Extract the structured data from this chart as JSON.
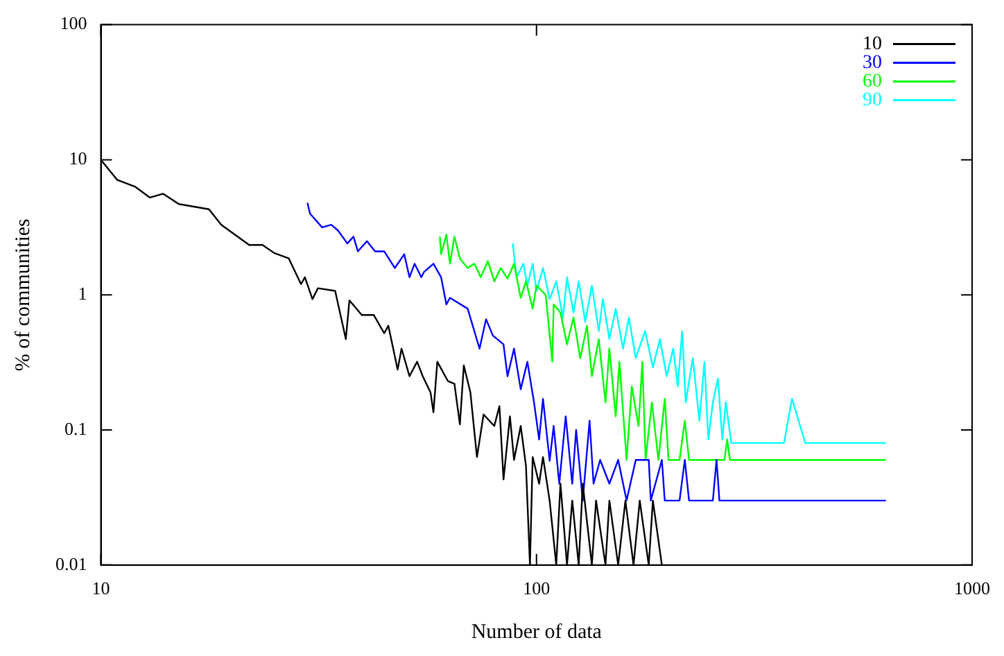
{
  "chart_data": {
    "type": "line",
    "xlabel": "Number of data",
    "ylabel": "% of communities",
    "log": "xy",
    "grid": false,
    "legend": "top right",
    "marker": "none",
    "line_style": "solid",
    "xlim": [
      10,
      1000
    ],
    "xticks": [
      10,
      100,
      1000
    ],
    "ylim": [
      0.01,
      100
    ],
    "yticks": [
      0.01,
      0.1,
      1,
      10,
      100
    ],
    "series": [
      {
        "name": "10",
        "color": "#000000",
        "x": [
          10,
          10.9,
          12.0,
          12.96,
          13.9,
          15.1,
          17.7,
          18.9,
          21.9,
          23.5,
          25.0,
          27.0,
          28.8,
          29.4,
          30.6,
          31.5,
          34.5,
          36.5,
          37.2,
          39.7,
          42.3,
          44.7,
          45.7,
          48.0,
          49.0,
          51.1,
          53.2,
          54.8,
          57.1,
          58.0,
          59.2,
          62.6,
          64.8,
          66.7,
          68.1,
          70.5,
          73.0,
          75.6,
          80.0,
          82.2,
          84.0,
          86.9,
          88.8,
          92.0,
          94.6,
          96.6,
          98.0,
          101.4,
          103.5,
          107.2,
          111,
          113.5,
          117.5,
          120.8,
          125,
          127.7,
          134,
          137,
          144,
          147,
          154,
          160,
          167,
          172.6,
          181,
          185,
          194
        ],
        "values": [
          10,
          7.1,
          6.3,
          5.25,
          5.6,
          4.7,
          4.3,
          3.3,
          2.34,
          2.34,
          2.04,
          1.86,
          1.2,
          1.35,
          0.93,
          1.12,
          1.07,
          0.47,
          0.91,
          0.71,
          0.71,
          0.52,
          0.59,
          0.28,
          0.4,
          0.25,
          0.32,
          0.25,
          0.19,
          0.135,
          0.32,
          0.23,
          0.22,
          0.11,
          0.3,
          0.19,
          0.063,
          0.13,
          0.107,
          0.15,
          0.043,
          0.126,
          0.06,
          0.107,
          0.054,
          0.01,
          0.063,
          0.04,
          0.063,
          0.03,
          0.01,
          0.04,
          0.01,
          0.03,
          0.01,
          0.04,
          0.01,
          0.03,
          0.01,
          0.03,
          0.01,
          0.03,
          0.01,
          0.03,
          0.01,
          0.03,
          0.01
        ]
      },
      {
        "name": "30",
        "color": "#0000ff",
        "x": [
          29.8,
          30.2,
          32.2,
          33.8,
          35.0,
          36.8,
          38.0,
          38.9,
          40.8,
          42.6,
          44.7,
          47.3,
          49.7,
          51.1,
          52.5,
          54.4,
          55.2,
          58,
          60.4,
          62.1,
          63.3,
          69.5,
          74,
          76.6,
          79.4,
          84,
          85.8,
          88.8,
          92,
          95.3,
          98.7,
          101.4,
          103.5,
          107.2,
          109.5,
          112.8,
          116.7,
          120.8,
          123.3,
          127.7,
          132.4,
          135.2,
          140,
          147,
          154,
          161,
          169,
          181,
          183,
          194,
          197,
          213,
          219,
          224,
          254,
          259,
          263,
          634
        ],
        "values": [
          4.8,
          4.0,
          3.16,
          3.3,
          3.0,
          2.4,
          2.7,
          2.1,
          2.5,
          2.1,
          2.1,
          1.58,
          2.0,
          1.35,
          1.7,
          1.35,
          1.48,
          1.7,
          1.35,
          0.85,
          0.95,
          0.79,
          0.4,
          0.66,
          0.5,
          0.43,
          0.25,
          0.4,
          0.2,
          0.32,
          0.16,
          0.085,
          0.17,
          0.059,
          0.107,
          0.04,
          0.126,
          0.04,
          0.1,
          0.03,
          0.117,
          0.04,
          0.06,
          0.04,
          0.06,
          0.03,
          0.06,
          0.06,
          0.03,
          0.06,
          0.03,
          0.03,
          0.06,
          0.03,
          0.03,
          0.06,
          0.03,
          0.03
        ]
      },
      {
        "name": "60",
        "color": "#00ff00",
        "x": [
          60,
          60.4,
          62.1,
          63.3,
          64.8,
          66.7,
          69.5,
          72,
          74.5,
          77.3,
          80,
          82.8,
          85.8,
          88.8,
          92,
          94.6,
          98,
          100,
          105,
          108.7,
          109.5,
          113.5,
          117.5,
          121.6,
          126,
          130.6,
          134,
          139,
          144,
          147,
          152,
          155,
          161,
          165.5,
          171.5,
          175,
          178,
          184,
          190.5,
          197,
          201,
          213,
          219,
          224,
          270,
          274,
          278,
          634
        ],
        "values": [
          2.7,
          2.0,
          2.8,
          1.7,
          2.7,
          1.86,
          1.58,
          1.7,
          1.35,
          1.78,
          1.26,
          1.58,
          1.32,
          1.7,
          0.95,
          1.26,
          0.79,
          1.17,
          1.0,
          0.32,
          0.85,
          0.74,
          0.43,
          0.68,
          0.34,
          0.59,
          0.25,
          0.47,
          0.16,
          0.4,
          0.126,
          0.32,
          0.06,
          0.21,
          0.107,
          0.32,
          0.06,
          0.16,
          0.06,
          0.17,
          0.06,
          0.06,
          0.117,
          0.06,
          0.06,
          0.085,
          0.06,
          0.06
        ]
      },
      {
        "name": "90",
        "color": "#00ffff",
        "x": [
          88.2,
          90,
          93.3,
          95.3,
          98,
          100,
          103.5,
          107.2,
          111,
          115,
          117.5,
          121.6,
          125,
          129.4,
          134,
          139,
          142,
          147,
          152,
          158,
          163,
          169,
          177.5,
          185,
          192,
          199,
          206,
          211,
          216,
          220,
          228.5,
          236.5,
          243,
          248,
          254,
          261,
          267,
          272,
          280,
          370,
          386,
          414,
          634
        ],
        "values": [
          2.4,
          1.35,
          1.7,
          1.17,
          1.7,
          1.07,
          1.58,
          0.93,
          1.26,
          0.68,
          1.35,
          0.74,
          1.26,
          0.63,
          1.17,
          0.54,
          0.93,
          0.47,
          0.79,
          0.4,
          0.68,
          0.34,
          0.54,
          0.29,
          0.47,
          0.25,
          0.4,
          0.21,
          0.54,
          0.16,
          0.34,
          0.117,
          0.32,
          0.085,
          0.16,
          0.24,
          0.085,
          0.16,
          0.08,
          0.08,
          0.17,
          0.08,
          0.08
        ]
      }
    ]
  }
}
